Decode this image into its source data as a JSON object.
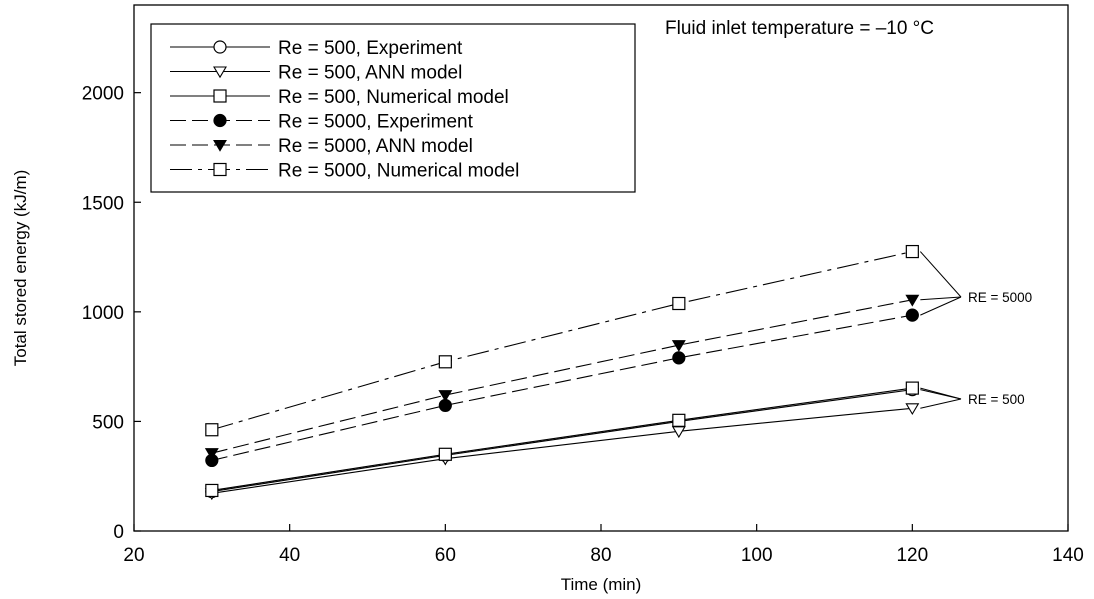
{
  "chart_data": {
    "type": "line",
    "title": "",
    "xlabel": "Time (min)",
    "ylabel": "Total stored energy (kJ/m)",
    "xlim": [
      20,
      140
    ],
    "ylim": [
      0,
      2400
    ],
    "xticks": [
      20,
      40,
      60,
      80,
      100,
      120,
      140
    ],
    "yticks": [
      0,
      500,
      1000,
      1500,
      2000
    ],
    "grid": false,
    "legend_position": "top-left",
    "annotation": "Fluid inlet temperature = –10 °C",
    "x": [
      30,
      60,
      90,
      120
    ],
    "series": [
      {
        "name": "Re = 500, Experiment",
        "values": [
          180,
          345,
          500,
          645
        ],
        "marker": "circle-open",
        "line": "solid"
      },
      {
        "name": "Re = 500, ANN model",
        "values": [
          172,
          330,
          455,
          560
        ],
        "marker": "triangle-down-open",
        "line": "solid"
      },
      {
        "name": "Re = 500, Numerical model",
        "values": [
          185,
          350,
          505,
          652
        ],
        "marker": "square-open",
        "line": "solid"
      },
      {
        "name": "Re = 5000, Experiment",
        "values": [
          322,
          573,
          790,
          985
        ],
        "marker": "circle-filled",
        "line": "dashed"
      },
      {
        "name": "Re = 5000, ANN model",
        "values": [
          355,
          620,
          848,
          1055
        ],
        "marker": "triangle-down-filled",
        "line": "dashed"
      },
      {
        "name": "Re = 5000, Numerical model",
        "values": [
          462,
          772,
          1038,
          1275
        ],
        "marker": "square-open",
        "line": "dash-dot"
      }
    ],
    "group_labels": [
      {
        "text": "RE = 5000",
        "series": [
          3,
          4,
          5
        ]
      },
      {
        "text": "RE = 500",
        "series": [
          0,
          1,
          2
        ]
      }
    ]
  }
}
